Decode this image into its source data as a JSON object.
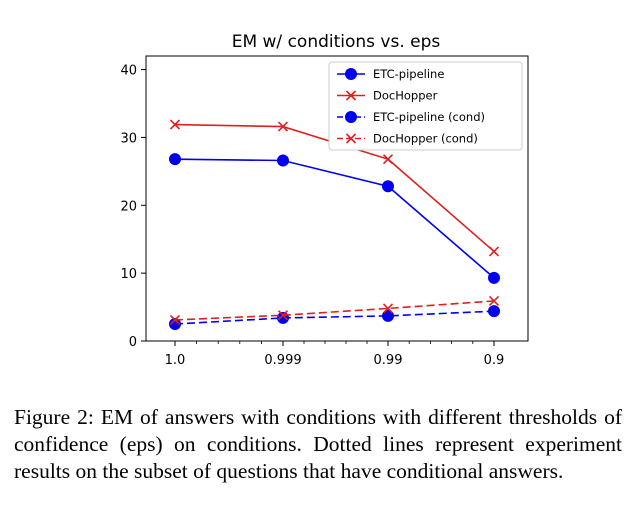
{
  "chart_data": {
    "type": "line",
    "title": "EM w/ conditions vs. eps",
    "categories": [
      "1.0",
      "0.999",
      "0.99",
      "0.9"
    ],
    "ylim": [
      0,
      42
    ],
    "yticks": [
      0,
      10,
      20,
      30,
      40
    ],
    "grid": false,
    "legend_position": "top-right",
    "series": [
      {
        "name": "ETC-pipeline",
        "values": [
          26.8,
          26.6,
          22.8,
          9.3
        ],
        "color": "#0000ee",
        "linestyle": "solid",
        "marker": "circle"
      },
      {
        "name": "DocHopper",
        "values": [
          31.9,
          31.6,
          26.8,
          13.2
        ],
        "color": "#e0201e",
        "linestyle": "solid",
        "marker": "x"
      },
      {
        "name": "ETC-pipeline (cond)",
        "values": [
          2.5,
          3.4,
          3.7,
          4.4
        ],
        "color": "#0000ee",
        "linestyle": "dashed",
        "marker": "circle"
      },
      {
        "name": "DocHopper (cond)",
        "values": [
          3.1,
          3.8,
          4.8,
          5.9
        ],
        "color": "#e0201e",
        "linestyle": "dashed",
        "marker": "x"
      }
    ]
  },
  "caption": "Figure 2:  EM of answers with conditions with different thresholds of confidence (eps) on conditions.  Dotted lines represent experiment results on the subset of questions that have conditional answers."
}
